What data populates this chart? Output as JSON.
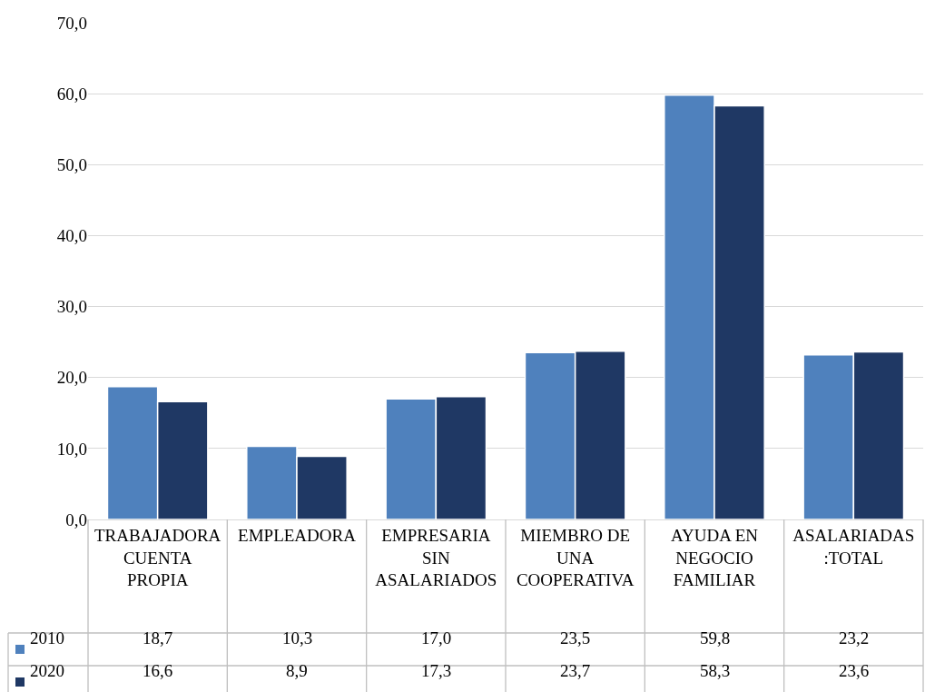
{
  "chart_data": {
    "type": "bar",
    "categories": [
      "TRABAJADORA CUENTA PROPIA",
      "EMPLEADORA",
      "EMPRESARIA SIN ASALARIADOS",
      "MIEMBRO DE UNA COOPERATIVA",
      "AYUDA EN NEGOCIO FAMILIAR",
      "ASALARIADAS:TOTAL"
    ],
    "series": [
      {
        "name": "2010",
        "color": "#4f81bd",
        "values": [
          18.7,
          10.3,
          17.0,
          23.5,
          59.8,
          23.2
        ],
        "value_labels": [
          "18,7",
          "10,3",
          "17,0",
          "23,5",
          "59,8",
          "23,2"
        ]
      },
      {
        "name": "2020",
        "color": "#1f3864",
        "values": [
          16.6,
          8.9,
          17.3,
          23.7,
          58.3,
          23.6
        ],
        "value_labels": [
          "16,6",
          "8,9",
          "17,3",
          "23,7",
          "58,3",
          "23,6"
        ]
      }
    ],
    "ylim": [
      0,
      70
    ],
    "yticks": [
      {
        "value": 0,
        "label": "0,0"
      },
      {
        "value": 10,
        "label": "10,0"
      },
      {
        "value": 20,
        "label": "20,0"
      },
      {
        "value": 30,
        "label": "30,0"
      },
      {
        "value": 40,
        "label": "40,0"
      },
      {
        "value": 50,
        "label": "50,0"
      },
      {
        "value": 60,
        "label": "60,0"
      },
      {
        "value": 70,
        "label": "70,0"
      }
    ],
    "grid": "y",
    "legend": "bottom"
  }
}
